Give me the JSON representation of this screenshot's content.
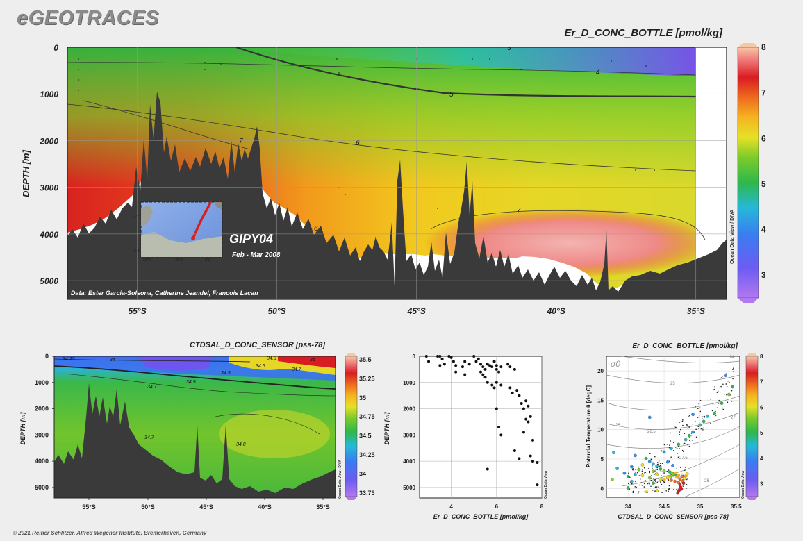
{
  "header": {
    "logo": "eGEOTRACES"
  },
  "footer": {
    "copyright": "© 2021 Reiner Schlitzer, Alfred Wegener Institute, Bremerhaven, Germany"
  },
  "chart_data": [
    {
      "id": "main-section",
      "type": "heatmap",
      "title": "Er_D_CONC_BOTTLE [pmol/kg]",
      "xlabel": "",
      "ylabel": "DEPTH [m]",
      "x_ticks": [
        "55°S",
        "50°S",
        "45°S",
        "40°S",
        "35°S"
      ],
      "x_tick_values": [
        -55,
        -50,
        -45,
        -40,
        -35
      ],
      "xlim": [
        -57.5,
        -33.9
      ],
      "y_ticks": [
        0,
        1000,
        2000,
        3000,
        4000,
        5000
      ],
      "ylim": [
        0,
        5400
      ],
      "contour_labels": [
        "3",
        "4",
        "5",
        "6",
        "6",
        "7",
        "7"
      ],
      "colorbar": {
        "ticks": [
          3,
          4,
          5,
          6,
          7,
          8
        ],
        "range": [
          2.5,
          8
        ],
        "label": "Ocean Data View / DIVA"
      },
      "annotations": {
        "cruise": "GIPY04",
        "period": "Feb - Mar 2008",
        "credits": "Data: Ester Garcia-Solsona, Catherine Jeandel, Francois Lacan",
        "inset_ticks": [
          "60°W",
          "30°W",
          "0°E",
          "60°S",
          "75°S"
        ]
      }
    },
    {
      "id": "salinity-section",
      "type": "heatmap",
      "title": "CTDSAL_D_CONC_SENSOR [pss-78]",
      "ylabel": "DEPTH [m]",
      "x_ticks": [
        "55°S",
        "50°S",
        "45°S",
        "40°S",
        "35°S"
      ],
      "y_ticks": [
        0,
        1000,
        2000,
        3000,
        4000,
        5000
      ],
      "contour_labels": [
        "34.25",
        "34",
        "34.5",
        "34.7",
        "34.7",
        "34.8",
        "34.5",
        "34.8",
        "35",
        "34.5",
        "34.7"
      ],
      "colorbar": {
        "ticks": [
          "35.5",
          "35.25",
          "35",
          "34.75",
          "34.5",
          "34.25",
          "34",
          "33.75"
        ],
        "label": "Ocean Data View / DIVA"
      }
    },
    {
      "id": "profile-scatter",
      "type": "scatter",
      "xlabel": "Er_D_CONC_BOTTLE [pmol/kg]",
      "ylabel": "DEPTH [m]",
      "x_ticks": [
        4,
        6,
        8
      ],
      "y_ticks": [
        0,
        1000,
        2000,
        3000,
        4000,
        5000
      ],
      "xlim": [
        2.6,
        8.0
      ],
      "ylim": [
        0,
        5400
      ],
      "watermark": "Ocean Data View",
      "x": [
        2.9,
        3.0,
        3.4,
        3.5,
        3.6,
        3.7,
        3.9,
        4.0,
        4.1,
        4.2,
        3.5,
        4.5,
        4.6,
        4.8,
        5.0,
        5.1,
        5.2,
        5.3,
        5.4,
        5.5,
        5.6,
        5.7,
        5.8,
        5.9,
        6.0,
        6.0,
        6.1,
        6.2,
        6.5,
        6.6,
        6.8,
        4.2,
        4.6,
        5.3,
        5.4,
        5.5,
        5.6,
        5.8,
        5.9,
        6.0,
        6.2,
        6.6,
        6.7,
        6.9,
        7.0,
        7.1,
        7.2,
        7.3,
        7.4,
        6.0,
        6.1,
        6.2,
        7.2,
        7.3,
        7.4,
        7.5,
        7.6,
        6.8,
        7.0,
        7.5,
        7.6,
        7.8,
        5.6,
        7.8
      ],
      "y": [
        0,
        200,
        0,
        0,
        100,
        300,
        0,
        50,
        200,
        350,
        350,
        400,
        200,
        300,
        0,
        200,
        100,
        300,
        400,
        500,
        300,
        350,
        400,
        200,
        350,
        500,
        600,
        400,
        300,
        400,
        500,
        600,
        700,
        600,
        700,
        800,
        1000,
        1100,
        1200,
        1000,
        1100,
        1200,
        1400,
        1300,
        1500,
        1800,
        2000,
        1700,
        1900,
        2000,
        2700,
        3000,
        2900,
        2400,
        2500,
        2300,
        3200,
        3600,
        3900,
        3800,
        4000,
        4050,
        4300,
        4900
      ]
    },
    {
      "id": "ts-diagram",
      "type": "scatter",
      "title": "Er_D_CONC_BOTTLE [pmol/kg]",
      "xlabel": "CTDSAL_D_CONC_SENSOR [pss-78]",
      "ylabel": "Potential Temperature θ [degC]",
      "x_ticks": [
        34,
        34.5,
        35,
        35.5
      ],
      "y_ticks": [
        0,
        5,
        10,
        15,
        20
      ],
      "xlim": [
        33.7,
        35.55
      ],
      "ylim": [
        -1.5,
        22.5
      ],
      "isopycnal_label": "σ0",
      "isopycnal_values": [
        "24",
        "25",
        "26",
        "26.5",
        "27",
        "27.5",
        "28"
      ],
      "colorbar": {
        "ticks": [
          3,
          4,
          5,
          6,
          7,
          8
        ],
        "label": "Ocean Data View"
      },
      "watermark": "Ocean Data View",
      "points": [
        [
          34.45,
          1.6,
          6.2
        ],
        [
          34.5,
          1.5,
          6.5
        ],
        [
          34.55,
          1.8,
          6.8
        ],
        [
          34.6,
          1.4,
          7.0
        ],
        [
          34.65,
          1.2,
          7.2
        ],
        [
          34.7,
          1.0,
          7.4
        ],
        [
          34.72,
          0.6,
          7.5
        ],
        [
          34.73,
          0.2,
          7.6
        ],
        [
          34.71,
          -0.3,
          7.8
        ],
        [
          34.69,
          -0.8,
          7.9
        ],
        [
          34.55,
          2.0,
          6.0
        ],
        [
          34.6,
          2.1,
          5.5
        ],
        [
          34.65,
          2.3,
          5.0
        ],
        [
          34.7,
          2.2,
          6.5
        ],
        [
          34.75,
          2.0,
          7.0
        ],
        [
          34.8,
          2.1,
          6.8
        ],
        [
          34.78,
          1.7,
          6.2
        ],
        [
          34.68,
          1.9,
          6.6
        ],
        [
          34.62,
          2.5,
          5.8
        ],
        [
          34.58,
          2.8,
          5.2
        ],
        [
          34.5,
          3.0,
          5.6
        ],
        [
          34.45,
          3.3,
          5.3
        ],
        [
          34.4,
          3.8,
          4.8
        ],
        [
          34.35,
          4.2,
          4.5
        ],
        [
          34.3,
          4.6,
          4.3
        ],
        [
          34.25,
          5.1,
          5.0
        ],
        [
          34.2,
          4.0,
          6.0
        ],
        [
          34.15,
          3.2,
          5.5
        ],
        [
          34.1,
          2.4,
          4.8
        ],
        [
          34.0,
          2.0,
          5.2
        ],
        [
          34.05,
          1.2,
          4.6
        ],
        [
          33.95,
          2.6,
          4.2
        ],
        [
          34.2,
          2.2,
          6.4
        ],
        [
          34.3,
          1.8,
          5.9
        ],
        [
          34.4,
          2.4,
          6.1
        ],
        [
          34.1,
          5.6,
          4.4
        ],
        [
          34.5,
          6.2,
          4.0
        ],
        [
          34.6,
          6.8,
          4.6
        ],
        [
          34.7,
          7.5,
          5.1
        ],
        [
          34.8,
          8.3,
          4.7
        ],
        [
          34.85,
          9.0,
          5.0
        ],
        [
          34.9,
          9.6,
          4.4
        ],
        [
          35.0,
          10.8,
          4.9
        ],
        [
          35.05,
          11.4,
          5.3
        ],
        [
          35.1,
          12.3,
          4.6
        ],
        [
          35.2,
          12.8,
          5.1
        ],
        [
          35.3,
          14.5,
          5.4
        ],
        [
          35.4,
          16.0,
          5.8
        ],
        [
          35.45,
          17.3,
          5.2
        ],
        [
          35.35,
          19.2,
          4.2
        ],
        [
          34.3,
          12.1,
          4.3
        ],
        [
          34.9,
          12.6,
          4.1
        ],
        [
          34.55,
          4.5,
          4.2
        ],
        [
          34.62,
          3.9,
          4.1
        ],
        [
          33.8,
          6.1,
          4.5
        ],
        [
          33.85,
          3.4,
          4.6
        ],
        [
          34.0,
          0.1,
          5.1
        ],
        [
          34.35,
          0.9,
          5.4
        ],
        [
          34.25,
          -0.5,
          6.3
        ],
        [
          34.4,
          -0.4,
          6.0
        ],
        [
          33.78,
          1.5,
          5.7
        ],
        [
          34.05,
          3.7,
          4.3
        ],
        [
          34.35,
          2.9,
          5.8
        ],
        [
          34.72,
          1.6,
          7.1
        ],
        [
          34.76,
          1.3,
          7.3
        ],
        [
          34.77,
          0.9,
          7.6
        ],
        [
          34.74,
          -0.1,
          7.7
        ],
        [
          34.7,
          -0.5,
          7.9
        ],
        [
          34.66,
          2.6,
          6.9
        ],
        [
          34.82,
          2.5,
          6.4
        ]
      ]
    }
  ]
}
